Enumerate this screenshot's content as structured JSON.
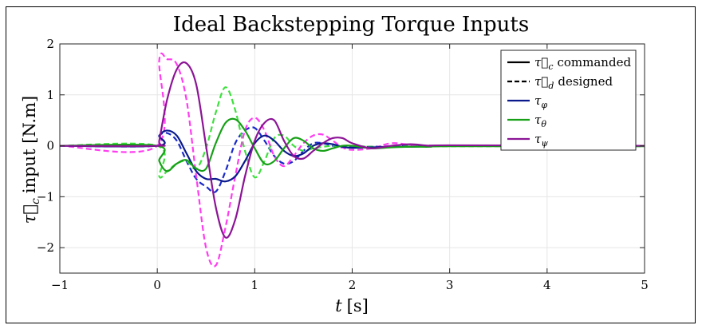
{
  "chart_data": {
    "type": "line",
    "title": "Ideal Backstepping Torque Inputs",
    "xlabel_symbol": "t",
    "xlabel_unit": "[s]",
    "ylabel_symbol": "τ⃗",
    "ylabel_sub": "c",
    "ylabel_text": "input [N.m]",
    "xlim": [
      -1,
      5
    ],
    "ylim": [
      -2.5,
      2
    ],
    "xticks": [
      -1,
      0,
      1,
      2,
      3,
      4,
      5
    ],
    "xtick_labels": [
      "−1",
      "0",
      "1",
      "2",
      "3",
      "4",
      "5"
    ],
    "yticks": [
      2,
      1,
      0,
      -1,
      -2
    ],
    "ytick_labels": [
      "2",
      "1",
      "0",
      "−1",
      "−2"
    ],
    "grid": true,
    "legend_placement": "top-right",
    "legend": [
      {
        "sym": "τ⃗",
        "sub": "c",
        "text": "commanded",
        "style": "solid",
        "color": "#000000"
      },
      {
        "sym": "τ⃗",
        "sub": "d",
        "text": "designed",
        "style": "dashed",
        "color": "#000000"
      },
      {
        "sym": "τ",
        "sub": "φ",
        "text": "",
        "style": "solid",
        "color": "#0a1a8c"
      },
      {
        "sym": "τ",
        "sub": "θ",
        "text": "",
        "style": "solid",
        "color": "#17a017"
      },
      {
        "sym": "τ",
        "sub": "ψ",
        "text": "",
        "style": "solid",
        "color": "#8c1496"
      }
    ],
    "series": [
      {
        "key": "phi_cmd",
        "style": "solid",
        "color": "#0a1a8c",
        "x": [
          -1,
          0,
          0.02,
          0.1,
          0.2,
          0.3,
          0.4,
          0.5,
          0.6,
          0.7,
          0.8,
          0.9,
          1.0,
          1.1,
          1.2,
          1.3,
          1.4,
          1.5,
          1.6,
          1.7,
          1.8,
          1.9,
          2.0,
          2.2,
          2.4,
          2.6,
          2.8,
          3.0,
          5.0
        ],
        "y": [
          0,
          0,
          0.2,
          0.3,
          0.2,
          -0.15,
          -0.5,
          -0.65,
          -0.65,
          -0.7,
          -0.6,
          -0.3,
          0.05,
          0.2,
          0.1,
          -0.1,
          -0.2,
          -0.15,
          0,
          0.05,
          0.03,
          -0.02,
          -0.04,
          -0.03,
          -0.02,
          -0.02,
          -0.01,
          0,
          0
        ]
      },
      {
        "key": "phi_des",
        "style": "dashed",
        "color": "#1a2ac8",
        "x": [
          -1,
          0,
          0.02,
          0.1,
          0.2,
          0.3,
          0.4,
          0.5,
          0.6,
          0.7,
          0.8,
          0.9,
          1.0,
          1.1,
          1.2,
          1.3,
          1.4,
          1.5,
          1.6,
          1.7,
          1.8,
          1.9,
          2.0,
          2.2,
          2.4,
          2.6,
          2.8,
          3.0,
          5.0
        ],
        "y": [
          0,
          0,
          0.2,
          0.25,
          0.1,
          -0.3,
          -0.65,
          -0.8,
          -0.9,
          -0.5,
          0.05,
          0.3,
          0.35,
          0.1,
          -0.2,
          -0.35,
          -0.3,
          -0.1,
          0.05,
          0.05,
          0,
          -0.03,
          -0.03,
          -0.02,
          -0.01,
          0,
          0,
          0,
          0
        ]
      },
      {
        "key": "theta_cmd",
        "style": "solid",
        "color": "#17a017",
        "x": [
          -1,
          0,
          0.02,
          0.1,
          0.2,
          0.3,
          0.4,
          0.5,
          0.6,
          0.7,
          0.8,
          0.9,
          1.0,
          1.1,
          1.2,
          1.3,
          1.4,
          1.5,
          1.6,
          1.7,
          1.8,
          1.9,
          2.0,
          2.2,
          2.4,
          2.6,
          2.8,
          3.0,
          5.0
        ],
        "y": [
          0,
          0,
          -0.3,
          -0.5,
          -0.35,
          -0.28,
          -0.45,
          -0.45,
          0.05,
          0.45,
          0.52,
          0.3,
          -0.05,
          -0.35,
          -0.3,
          -0.05,
          0.15,
          0.1,
          -0.05,
          -0.1,
          -0.05,
          0,
          0,
          -0.05,
          -0.03,
          -0.02,
          -0.02,
          -0.01,
          -0.01
        ]
      },
      {
        "key": "theta_des",
        "style": "dashed",
        "color": "#3ee03e",
        "x": [
          -1,
          0,
          0.02,
          0.1,
          0.2,
          0.3,
          0.4,
          0.5,
          0.6,
          0.7,
          0.8,
          0.9,
          1.0,
          1.1,
          1.2,
          1.3,
          1.4,
          1.5,
          1.6,
          1.7,
          1.8,
          1.9,
          2.0,
          2.2,
          2.4,
          2.6,
          2.8,
          3.0,
          5.0
        ],
        "y": [
          0,
          0,
          -0.6,
          -0.5,
          -0.35,
          -0.3,
          -0.45,
          -0.05,
          0.65,
          1.15,
          0.7,
          -0.1,
          -0.62,
          -0.3,
          0.15,
          0.2,
          0,
          -0.1,
          -0.05,
          -0.02,
          0,
          0,
          0,
          -0.02,
          -0.02,
          -0.01,
          -0.01,
          -0.01,
          -0.01
        ]
      },
      {
        "key": "psi_cmd",
        "style": "solid",
        "color": "#8c1496",
        "x": [
          -1,
          0,
          0.02,
          0.1,
          0.2,
          0.3,
          0.4,
          0.5,
          0.6,
          0.7,
          0.8,
          0.9,
          1.0,
          1.1,
          1.2,
          1.3,
          1.4,
          1.5,
          1.6,
          1.7,
          1.8,
          1.9,
          2.0,
          2.2,
          2.4,
          2.6,
          2.8,
          3.0,
          5.0
        ],
        "y": [
          0,
          0,
          0.1,
          0.9,
          1.5,
          1.62,
          1.2,
          0,
          -1.2,
          -1.8,
          -1.45,
          -0.6,
          0.1,
          0.45,
          0.5,
          0.1,
          -0.2,
          -0.25,
          -0.1,
          0.05,
          0.15,
          0.15,
          0.05,
          -0.05,
          0,
          0.03,
          0,
          0.01,
          0
        ]
      },
      {
        "key": "psi_des",
        "style": "dashed",
        "color": "#ff3cf0",
        "x": [
          -1,
          0,
          0.02,
          0.1,
          0.2,
          0.3,
          0.4,
          0.5,
          0.6,
          0.7,
          0.8,
          0.9,
          1.0,
          1.1,
          1.2,
          1.3,
          1.4,
          1.5,
          1.6,
          1.7,
          1.8,
          1.9,
          2.0,
          2.2,
          2.4,
          2.6,
          2.8,
          3.0,
          5.0
        ],
        "y": [
          0,
          0,
          1.68,
          1.7,
          1.6,
          0.9,
          -0.6,
          -2.0,
          -2.35,
          -1.6,
          -0.6,
          0.3,
          0.55,
          0.3,
          -0.2,
          -0.4,
          -0.2,
          0.05,
          0.2,
          0.22,
          0.1,
          -0.03,
          -0.08,
          -0.05,
          0.05,
          0.02,
          0,
          0,
          0
        ]
      }
    ]
  }
}
